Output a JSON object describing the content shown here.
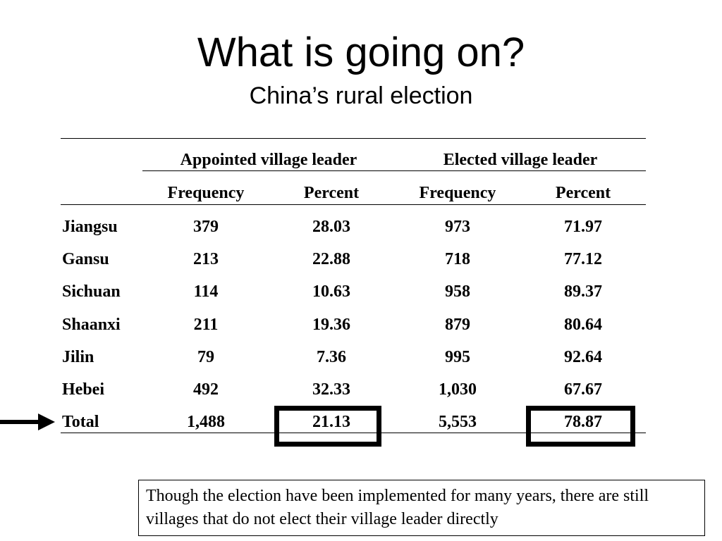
{
  "title": "What is going on?",
  "subtitle": "China’s rural election",
  "table": {
    "group_headers": [
      "Appointed village leader",
      "Elected village leader"
    ],
    "column_headers": [
      "Frequency",
      "Percent",
      "Frequency",
      "Percent"
    ],
    "rows": [
      {
        "label": "Jiangsu",
        "values": [
          "379",
          "28.03",
          "973",
          "71.97"
        ]
      },
      {
        "label": "Gansu",
        "values": [
          "213",
          "22.88",
          "718",
          "77.12"
        ]
      },
      {
        "label": "Sichuan",
        "values": [
          "114",
          "10.63",
          "958",
          "89.37"
        ]
      },
      {
        "label": "Shaanxi",
        "values": [
          "211",
          "19.36",
          "879",
          "80.64"
        ]
      },
      {
        "label": "Jilin",
        "values": [
          "79",
          "7.36",
          "995",
          "92.64"
        ]
      },
      {
        "label": "Hebei",
        "values": [
          "492",
          "32.33",
          "1,030",
          "67.67"
        ]
      },
      {
        "label": "Total",
        "values": [
          "1,488",
          "21.13",
          "5,553",
          "78.87"
        ]
      }
    ]
  },
  "note": "Though the election have been implemented for many years, there are still villages that do not elect their village leader directly"
}
